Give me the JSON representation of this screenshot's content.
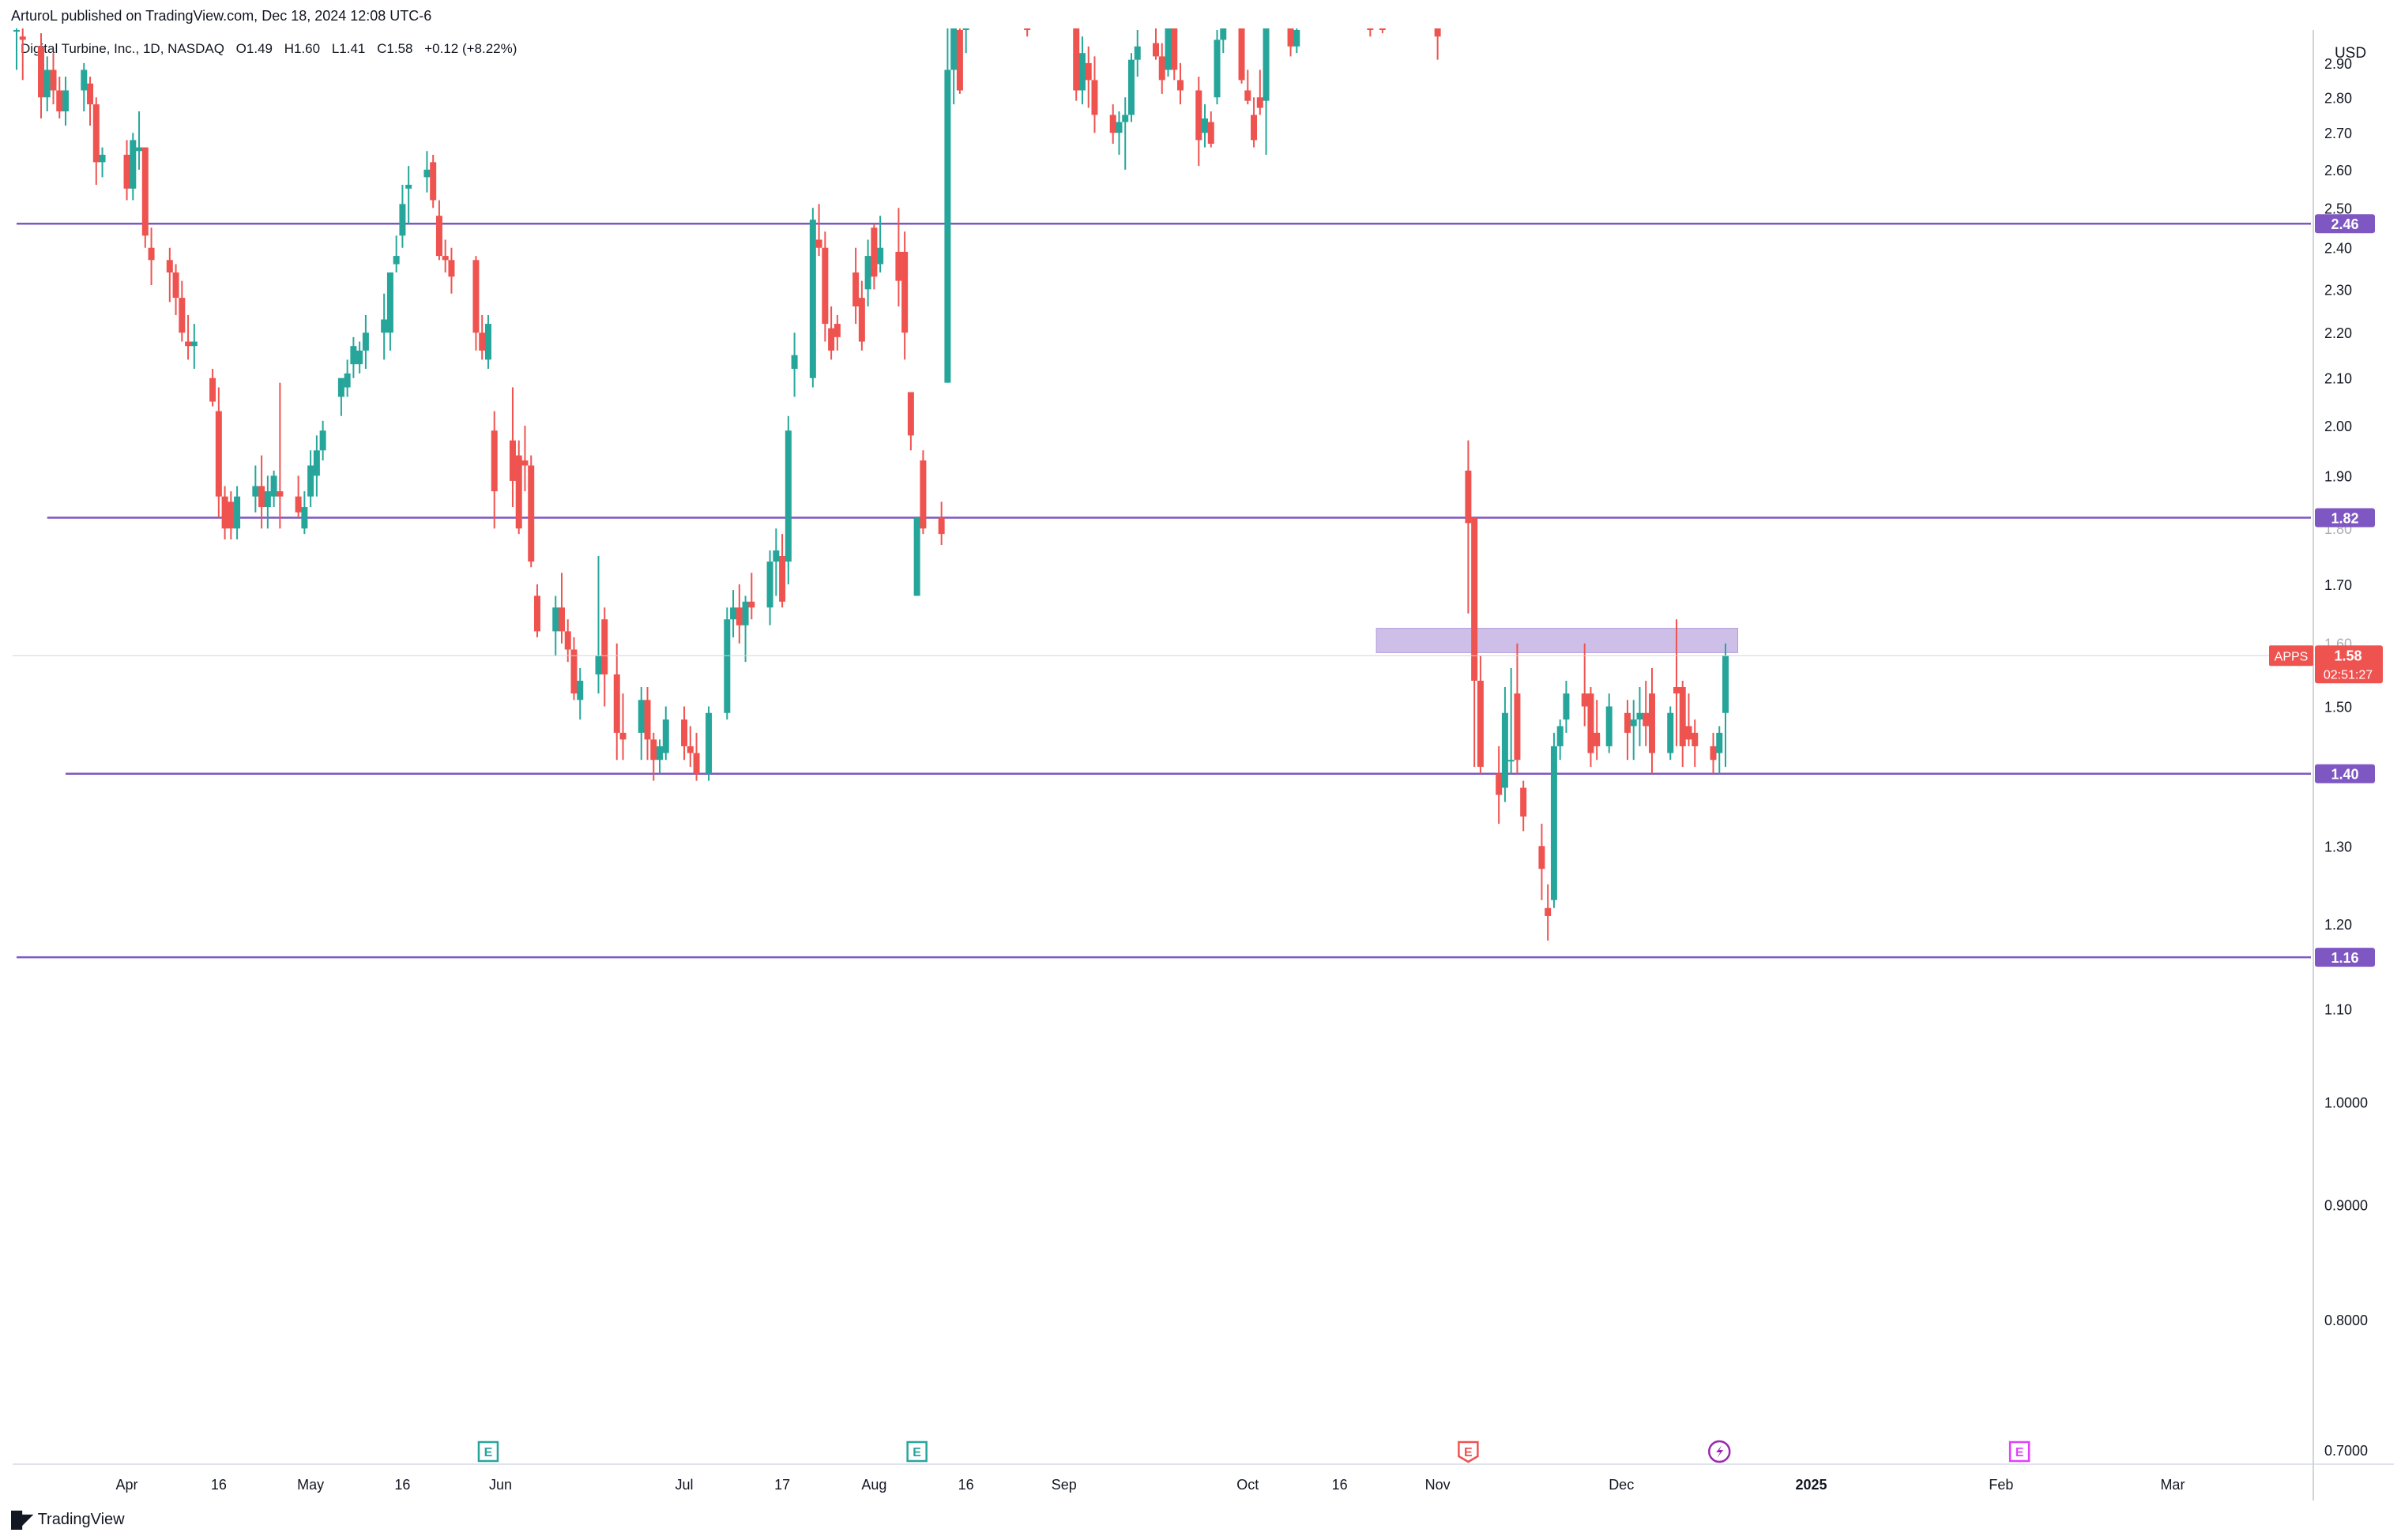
{
  "publisher": "ArturoL published on TradingView.com, Dec 18, 2024 12:08 UTC-6",
  "symbol": {
    "name": "Digital Turbine, Inc., 1D, NASDAQ",
    "open": "O1.49",
    "high": "H1.60",
    "low": "L1.41",
    "close": "C1.58",
    "change": "+0.12 (+8.22%)"
  },
  "currency": "USD",
  "footer_logo": "TradingView",
  "colors": {
    "up": "#26a69a",
    "down": "#ef5350",
    "level": "#7e57c2",
    "zone": "#b39ddb",
    "price_tag": "#ef5350",
    "axis_text": "#131722",
    "grid": "#e0e3eb"
  },
  "chart_data": {
    "type": "candlestick",
    "y_scale": "log",
    "ylim": [
      0.69,
      3.0
    ],
    "y_ticks": [
      "0.7000",
      "0.8000",
      "0.9000",
      "1.0000",
      "1.10",
      "1.20",
      "1.30",
      "1.40",
      "1.50",
      "1.60",
      "1.70",
      "1.80",
      "1.90",
      "2.00",
      "2.10",
      "2.20",
      "2.30",
      "2.40",
      "2.50",
      "2.60",
      "2.70",
      "2.80",
      "2.90"
    ],
    "x_ticks": [
      "Apr",
      "16",
      "May",
      "16",
      "Jun",
      "Jul",
      "17",
      "Aug",
      "16",
      "Sep",
      "Oct",
      "16",
      "Nov",
      "Dec",
      "2025",
      "Feb",
      "Mar"
    ],
    "levels": [
      {
        "label": "2.46",
        "value": 2.46,
        "from": "Mar 14"
      },
      {
        "label": "1.82",
        "value": 1.82,
        "from": "Mar 19"
      },
      {
        "label": "1.40",
        "value": 1.4,
        "from": "Mar 22"
      },
      {
        "label": "1.16",
        "value": 1.16,
        "from": "Mar 14"
      }
    ],
    "zone": {
      "from": "Oct 22",
      "to": "Dec 20",
      "low": 1.585,
      "high": 1.625
    },
    "last_price": {
      "ticker": "APPS",
      "value": "1.58",
      "countdown": "02:51:27"
    },
    "event_markers": [
      {
        "date": "May 30",
        "label": "E",
        "style": "earnings-past"
      },
      {
        "date": "Aug 8",
        "label": "E",
        "style": "earnings-past"
      },
      {
        "date": "Nov 6",
        "label": "E",
        "style": "earnings-report"
      },
      {
        "date": "Dec 17",
        "label": "",
        "style": "dividend"
      },
      {
        "date": "Feb 4",
        "label": "E",
        "style": "earnings-future"
      }
    ],
    "candles": [
      [
        "Mar 14",
        3.0,
        3.05,
        2.88,
        3.0
      ],
      [
        "Mar 15",
        2.98,
        3.02,
        2.85,
        2.97
      ],
      [
        "Mar 18",
        2.95,
        2.99,
        2.74,
        2.8
      ],
      [
        "Mar 19",
        2.8,
        2.92,
        2.76,
        2.88
      ],
      [
        "Mar 20",
        2.88,
        2.93,
        2.78,
        2.82
      ],
      [
        "Mar 21",
        2.82,
        2.86,
        2.74,
        2.76
      ],
      [
        "Mar 22",
        2.76,
        2.86,
        2.72,
        2.82
      ],
      [
        "Mar 25",
        2.82,
        2.9,
        2.76,
        2.88
      ],
      [
        "Mar 26",
        2.84,
        2.86,
        2.72,
        2.78
      ],
      [
        "Mar 27",
        2.78,
        2.8,
        2.56,
        2.62
      ],
      [
        "Mar 28",
        2.62,
        2.66,
        2.58,
        2.64
      ],
      [
        "Apr 1",
        2.64,
        2.68,
        2.52,
        2.55
      ],
      [
        "Apr 2",
        2.55,
        2.7,
        2.52,
        2.68
      ],
      [
        "Apr 3",
        2.65,
        2.76,
        2.6,
        2.66
      ],
      [
        "Apr 4",
        2.66,
        2.66,
        2.4,
        2.43
      ],
      [
        "Apr 5",
        2.4,
        2.45,
        2.31,
        2.37
      ],
      [
        "Apr 8",
        2.37,
        2.4,
        2.27,
        2.34
      ],
      [
        "Apr 9",
        2.34,
        2.36,
        2.24,
        2.28
      ],
      [
        "Apr 10",
        2.28,
        2.32,
        2.18,
        2.2
      ],
      [
        "Apr 11",
        2.18,
        2.24,
        2.14,
        2.17
      ],
      [
        "Apr 12",
        2.17,
        2.22,
        2.12,
        2.18
      ],
      [
        "Apr 15",
        2.1,
        2.12,
        2.04,
        2.05
      ],
      [
        "Apr 16",
        2.03,
        2.08,
        1.82,
        1.86
      ],
      [
        "Apr 17",
        1.86,
        1.88,
        1.78,
        1.8
      ],
      [
        "Apr 18",
        1.85,
        1.87,
        1.78,
        1.8
      ],
      [
        "Apr 19",
        1.8,
        1.88,
        1.78,
        1.86
      ],
      [
        "Apr 22",
        1.86,
        1.92,
        1.83,
        1.88
      ],
      [
        "Apr 23",
        1.88,
        1.94,
        1.8,
        1.84
      ],
      [
        "Apr 24",
        1.84,
        1.9,
        1.8,
        1.87
      ],
      [
        "Apr 25",
        1.86,
        1.91,
        1.84,
        1.9
      ],
      [
        "Apr 26",
        1.87,
        2.09,
        1.8,
        1.86
      ],
      [
        "Apr 29",
        1.86,
        1.9,
        1.82,
        1.83
      ],
      [
        "Apr 30",
        1.8,
        1.87,
        1.79,
        1.84
      ],
      [
        "May 1",
        1.86,
        1.95,
        1.84,
        1.92
      ],
      [
        "May 2",
        1.9,
        1.98,
        1.86,
        1.95
      ],
      [
        "May 3",
        1.95,
        2.01,
        1.93,
        1.99
      ],
      [
        "May 6",
        2.06,
        2.1,
        2.02,
        2.1
      ],
      [
        "May 7",
        2.08,
        2.14,
        2.06,
        2.11
      ],
      [
        "May 8",
        2.13,
        2.19,
        2.1,
        2.17
      ],
      [
        "May 9",
        2.13,
        2.18,
        2.11,
        2.16
      ],
      [
        "May 10",
        2.16,
        2.24,
        2.12,
        2.2
      ],
      [
        "May 13",
        2.2,
        2.29,
        2.14,
        2.23
      ],
      [
        "May 14",
        2.2,
        2.32,
        2.16,
        2.34
      ],
      [
        "May 15",
        2.36,
        2.43,
        2.34,
        2.38
      ],
      [
        "May 16",
        2.43,
        2.56,
        2.4,
        2.51
      ],
      [
        "May 17",
        2.55,
        2.61,
        2.46,
        2.56
      ],
      [
        "May 20",
        2.58,
        2.65,
        2.54,
        2.6
      ],
      [
        "May 21",
        2.62,
        2.64,
        2.5,
        2.52
      ],
      [
        "May 22",
        2.48,
        2.52,
        2.37,
        2.38
      ],
      [
        "May 23",
        2.38,
        2.42,
        2.34,
        2.37
      ],
      [
        "May 24",
        2.37,
        2.4,
        2.29,
        2.33
      ],
      [
        "May 28",
        2.37,
        2.38,
        2.16,
        2.2
      ],
      [
        "May 29",
        2.2,
        2.24,
        2.14,
        2.16
      ],
      [
        "May 30",
        2.14,
        2.24,
        2.12,
        2.22
      ],
      [
        "May 31",
        1.99,
        2.03,
        1.8,
        1.87
      ],
      [
        "Jun 3",
        1.97,
        2.08,
        1.84,
        1.89
      ],
      [
        "Jun 4",
        1.94,
        1.97,
        1.79,
        1.8
      ],
      [
        "Jun 5",
        1.93,
        2.0,
        1.87,
        1.92
      ],
      [
        "Jun 6",
        1.92,
        1.94,
        1.73,
        1.74
      ],
      [
        "Jun 7",
        1.68,
        1.7,
        1.61,
        1.62
      ],
      [
        "Jun 10",
        1.62,
        1.68,
        1.58,
        1.66
      ],
      [
        "Jun 11",
        1.66,
        1.72,
        1.6,
        1.62
      ],
      [
        "Jun 12",
        1.62,
        1.64,
        1.57,
        1.59
      ],
      [
        "Jun 13",
        1.59,
        1.61,
        1.51,
        1.52
      ],
      [
        "Jun 14",
        1.51,
        1.56,
        1.48,
        1.54
      ],
      [
        "Jun 17",
        1.55,
        1.75,
        1.52,
        1.58
      ],
      [
        "Jun 18",
        1.64,
        1.66,
        1.5,
        1.55
      ],
      [
        "Jun 20",
        1.55,
        1.6,
        1.42,
        1.46
      ],
      [
        "Jun 21",
        1.46,
        1.52,
        1.42,
        1.45
      ],
      [
        "Jun 24",
        1.46,
        1.53,
        1.42,
        1.51
      ],
      [
        "Jun 25",
        1.51,
        1.53,
        1.42,
        1.45
      ],
      [
        "Jun 26",
        1.45,
        1.46,
        1.39,
        1.42
      ],
      [
        "Jun 27",
        1.42,
        1.45,
        1.4,
        1.44
      ],
      [
        "Jun 28",
        1.43,
        1.5,
        1.42,
        1.48
      ],
      [
        "Jul 1",
        1.48,
        1.5,
        1.42,
        1.44
      ],
      [
        "Jul 2",
        1.44,
        1.47,
        1.41,
        1.43
      ],
      [
        "Jul 3",
        1.43,
        1.46,
        1.39,
        1.4
      ],
      [
        "Jul 5",
        1.4,
        1.5,
        1.39,
        1.49
      ],
      [
        "Jul 8",
        1.49,
        1.66,
        1.48,
        1.64
      ],
      [
        "Jul 9",
        1.64,
        1.69,
        1.61,
        1.66
      ],
      [
        "Jul 10",
        1.66,
        1.7,
        1.6,
        1.63
      ],
      [
        "Jul 11",
        1.63,
        1.68,
        1.57,
        1.67
      ],
      [
        "Jul 12",
        1.67,
        1.72,
        1.64,
        1.66
      ],
      [
        "Jul 15",
        1.66,
        1.76,
        1.63,
        1.74
      ],
      [
        "Jul 16",
        1.74,
        1.8,
        1.68,
        1.76
      ],
      [
        "Jul 17",
        1.75,
        1.79,
        1.66,
        1.67
      ],
      [
        "Jul 18",
        1.74,
        2.02,
        1.7,
        1.99
      ],
      [
        "Jul 19",
        2.12,
        2.2,
        2.06,
        2.15
      ],
      [
        "Jul 22",
        2.1,
        2.5,
        2.08,
        2.47
      ],
      [
        "Jul 23",
        2.42,
        2.51,
        2.38,
        2.4
      ],
      [
        "Jul 24",
        2.4,
        2.44,
        2.18,
        2.22
      ],
      [
        "Jul 25",
        2.21,
        2.26,
        2.14,
        2.16
      ],
      [
        "Jul 26",
        2.22,
        2.24,
        2.16,
        2.19
      ],
      [
        "Jul 29",
        2.34,
        2.4,
        2.22,
        2.26
      ],
      [
        "Jul 30",
        2.28,
        2.32,
        2.16,
        2.18
      ],
      [
        "Jul 31",
        2.3,
        2.42,
        2.26,
        2.38
      ],
      [
        "Aug 1",
        2.45,
        2.46,
        2.3,
        2.33
      ],
      [
        "Aug 2",
        2.36,
        2.48,
        2.34,
        2.4
      ],
      [
        "Aug 5",
        2.39,
        2.5,
        2.26,
        2.32
      ],
      [
        "Aug 6",
        2.39,
        2.44,
        2.14,
        2.2
      ],
      [
        "Aug 7",
        2.07,
        2.07,
        1.95,
        1.98
      ],
      [
        "Aug 8",
        1.68,
        1.82,
        1.68,
        1.82
      ],
      [
        "Aug 9",
        1.93,
        1.95,
        1.79,
        1.8
      ],
      [
        "Aug 12",
        1.82,
        1.85,
        1.77,
        1.79
      ],
      [
        "Aug 13",
        2.09,
        3.7,
        2.09,
        2.88
      ],
      [
        "Aug 14",
        2.88,
        3.2,
        2.78,
        3.1
      ],
      [
        "Aug 15",
        3.0,
        3.3,
        2.81,
        2.82
      ],
      [
        "Aug 16",
        3.0,
        3.2,
        2.93,
        3.05
      ],
      [
        "Aug 26",
        3.05,
        3.1,
        2.98,
        3.02
      ],
      [
        "Sep 3",
        3.02,
        3.06,
        2.79,
        2.82
      ],
      [
        "Sep 4",
        2.82,
        2.98,
        2.78,
        2.93
      ],
      [
        "Sep 5",
        2.9,
        2.95,
        2.77,
        2.85
      ],
      [
        "Sep 6",
        2.85,
        2.92,
        2.7,
        2.75
      ],
      [
        "Sep 9",
        2.75,
        2.78,
        2.67,
        2.7
      ],
      [
        "Sep 10",
        2.7,
        2.76,
        2.64,
        2.73
      ],
      [
        "Sep 11",
        2.73,
        2.8,
        2.6,
        2.75
      ],
      [
        "Sep 12",
        2.75,
        2.93,
        2.73,
        2.91
      ],
      [
        "Sep 13",
        2.91,
        3.0,
        2.86,
        2.95
      ],
      [
        "Sep 16",
        2.96,
        3.03,
        2.91,
        2.92
      ],
      [
        "Sep 17",
        2.92,
        2.96,
        2.81,
        2.85
      ],
      [
        "Sep 18",
        2.88,
        3.1,
        2.86,
        3.05
      ],
      [
        "Sep 19",
        3.05,
        3.12,
        2.85,
        2.88
      ],
      [
        "Sep 20",
        2.85,
        2.9,
        2.78,
        2.82
      ],
      [
        "Sep 23",
        2.82,
        2.86,
        2.61,
        2.68
      ],
      [
        "Sep 24",
        2.7,
        2.78,
        2.66,
        2.74
      ],
      [
        "Sep 25",
        2.73,
        2.76,
        2.66,
        2.67
      ],
      [
        "Sep 26",
        2.8,
        3.0,
        2.78,
        2.97
      ],
      [
        "Sep 27",
        2.97,
        3.1,
        2.93,
        3.06
      ],
      [
        "Sep 30",
        3.06,
        3.1,
        2.84,
        2.85
      ],
      [
        "Oct 1",
        2.82,
        2.88,
        2.78,
        2.79
      ],
      [
        "Oct 2",
        2.75,
        2.8,
        2.66,
        2.68
      ],
      [
        "Oct 3",
        2.8,
        2.88,
        2.75,
        2.77
      ],
      [
        "Oct 4",
        2.79,
        3.1,
        2.64,
        3.05
      ],
      [
        "Oct 7",
        3.05,
        3.12,
        3.0,
        3.02
      ],
      [
        "Oct 8",
        3.02,
        3.08,
        2.92,
        2.95
      ],
      [
        "Oct 9",
        2.95,
        3.05,
        2.93,
        3.0
      ],
      [
        "Oct 21",
        3.04,
        3.12,
        2.98,
        3.01
      ],
      [
        "Oct 23",
        3.02,
        3.08,
        2.99,
        3.01
      ],
      [
        "Nov 1",
        3.02,
        3.05,
        2.91,
        2.98
      ],
      [
        "Nov 6",
        1.91,
        1.97,
        1.65,
        1.81
      ],
      [
        "Nov 7",
        1.82,
        1.82,
        1.41,
        1.54
      ],
      [
        "Nov 8",
        1.54,
        1.58,
        1.4,
        1.41
      ],
      [
        "Nov 11",
        1.4,
        1.44,
        1.33,
        1.37
      ],
      [
        "Nov 12",
        1.38,
        1.53,
        1.36,
        1.49
      ],
      [
        "Nov 13",
        1.42,
        1.56,
        1.4,
        1.42
      ],
      [
        "Nov 14",
        1.52,
        1.6,
        1.4,
        1.42
      ],
      [
        "Nov 15",
        1.38,
        1.39,
        1.32,
        1.34
      ],
      [
        "Nov 18",
        1.3,
        1.33,
        1.23,
        1.27
      ],
      [
        "Nov 19",
        1.22,
        1.25,
        1.18,
        1.21
      ],
      [
        "Nov 20",
        1.23,
        1.46,
        1.22,
        1.44
      ],
      [
        "Nov 21",
        1.44,
        1.48,
        1.42,
        1.47
      ],
      [
        "Nov 22",
        1.48,
        1.54,
        1.46,
        1.52
      ],
      [
        "Nov 25",
        1.52,
        1.6,
        1.47,
        1.5
      ],
      [
        "Nov 26",
        1.52,
        1.53,
        1.41,
        1.43
      ],
      [
        "Nov 27",
        1.46,
        1.51,
        1.42,
        1.44
      ],
      [
        "Nov 29",
        1.44,
        1.52,
        1.43,
        1.5
      ],
      [
        "Dec 2",
        1.49,
        1.51,
        1.42,
        1.46
      ],
      [
        "Dec 3",
        1.47,
        1.51,
        1.42,
        1.48
      ],
      [
        "Dec 4",
        1.48,
        1.53,
        1.44,
        1.49
      ],
      [
        "Dec 5",
        1.49,
        1.54,
        1.44,
        1.47
      ],
      [
        "Dec 6",
        1.52,
        1.56,
        1.4,
        1.43
      ],
      [
        "Dec 9",
        1.43,
        1.5,
        1.42,
        1.49
      ],
      [
        "Dec 10",
        1.53,
        1.64,
        1.44,
        1.52
      ],
      [
        "Dec 11",
        1.53,
        1.54,
        1.41,
        1.44
      ],
      [
        "Dec 12",
        1.47,
        1.52,
        1.44,
        1.45
      ],
      [
        "Dec 13",
        1.46,
        1.48,
        1.41,
        1.44
      ],
      [
        "Dec 16",
        1.44,
        1.46,
        1.4,
        1.42
      ],
      [
        "Dec 17",
        1.43,
        1.47,
        1.4,
        1.46
      ],
      [
        "Dec 18",
        1.49,
        1.6,
        1.41,
        1.58
      ]
    ]
  }
}
